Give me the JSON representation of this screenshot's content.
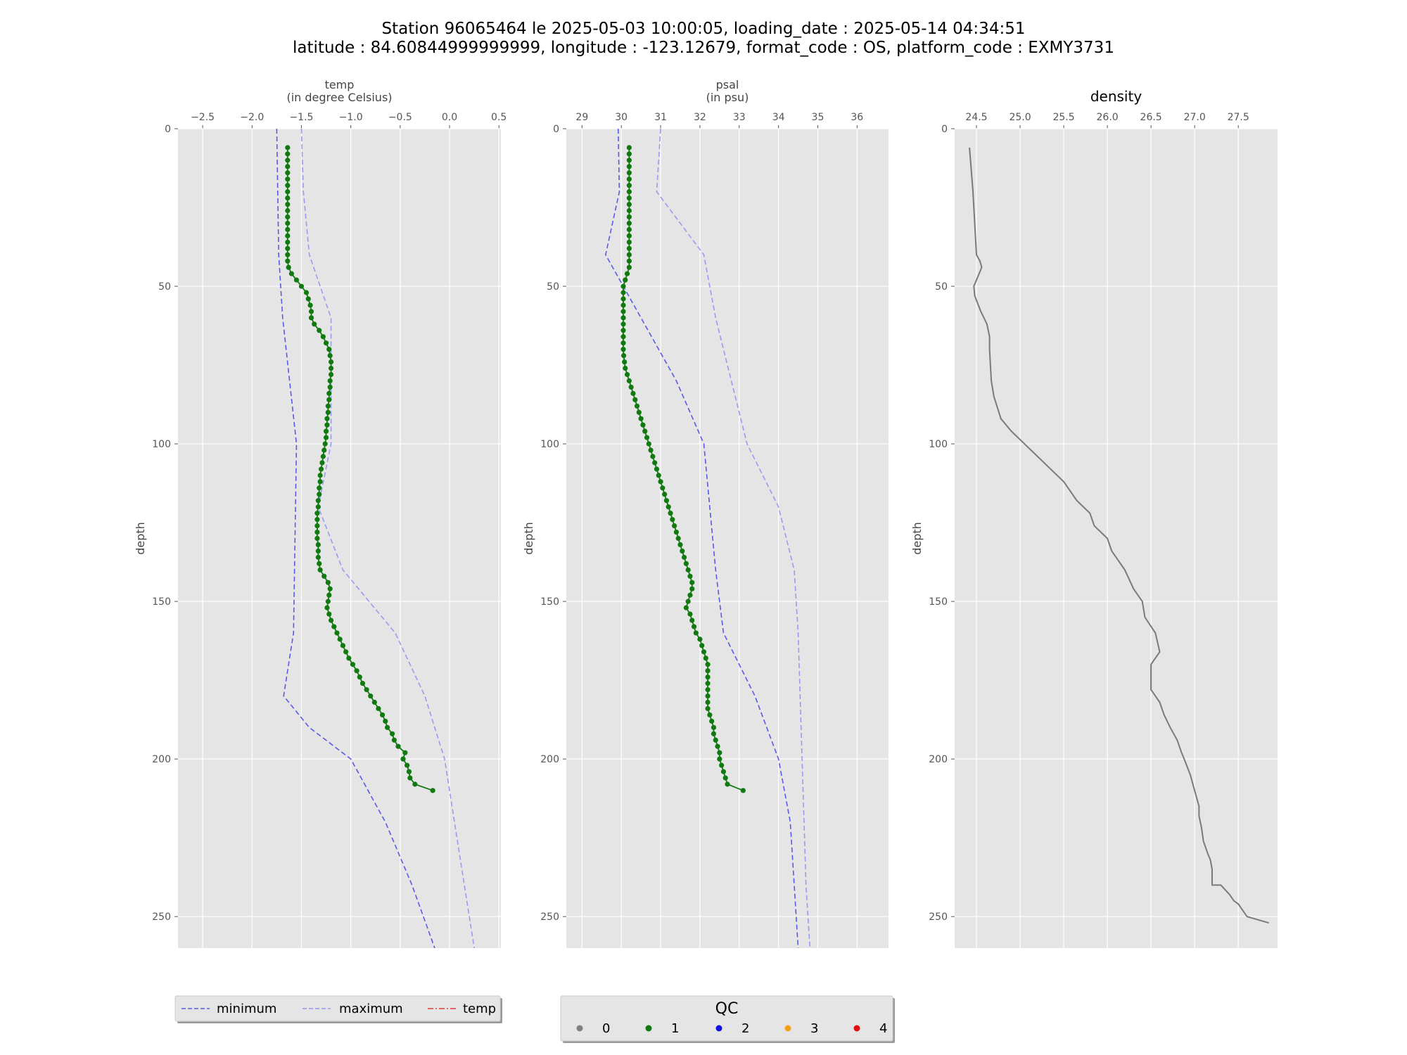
{
  "title": {
    "line1": "Station 96065464 le 2025-05-03 10:00:05, loading_date : 2025-05-14 04:34:51",
    "line2": "latitude : 84.60844999999999, longitude : -123.12679, format_code : OS, platform_code : EXMY3731"
  },
  "colors": {
    "panel_bg": "#e5e5e5",
    "grid": "#ffffff",
    "minimum": "#5a5ae6",
    "maximum": "#9a9aef",
    "qc1": "#107a10",
    "density": "#7a7a7a",
    "temp_legend": "#e23a3a"
  },
  "chart_data": [
    {
      "type": "line",
      "name": "temp",
      "title_line1": "temp",
      "title_line2": "(in degree Celsius)",
      "ylabel": "depth",
      "xlim": [
        -2.75,
        0.52
      ],
      "ylim": [
        260,
        0
      ],
      "xticks": [
        -2.5,
        -2.0,
        -1.5,
        -1.0,
        -0.5,
        0.0,
        0.5
      ],
      "xtick_labels": [
        "−2.5",
        "−2.0",
        "−1.5",
        "−1.0",
        "−0.5",
        "0.0",
        "0.5"
      ],
      "yticks": [
        0,
        50,
        100,
        150,
        200,
        250
      ],
      "ytick_labels": [
        "0",
        "50",
        "100",
        "150",
        "200",
        "250"
      ],
      "minimum": {
        "x": [
          -1.75,
          -1.74,
          -1.73,
          -1.69,
          -1.62,
          -1.55,
          -1.58,
          -1.68,
          -1.42,
          -1.0,
          -0.65,
          -0.38,
          -0.15
        ],
        "y": [
          0,
          20,
          40,
          60,
          80,
          100,
          160,
          180,
          190,
          200,
          220,
          240,
          260
        ]
      },
      "maximum": {
        "x": [
          -1.5,
          -1.48,
          -1.42,
          -1.2,
          -1.2,
          -1.2,
          -1.33,
          -1.08,
          -0.55,
          -0.25,
          -0.05,
          0.05,
          0.25
        ],
        "y": [
          0,
          20,
          40,
          60,
          80,
          100,
          120,
          140,
          160,
          180,
          200,
          220,
          260
        ]
      },
      "profile": {
        "qc": 1,
        "x": [
          -1.64,
          -1.64,
          -1.64,
          -1.64,
          -1.64,
          -1.64,
          -1.64,
          -1.64,
          -1.64,
          -1.64,
          -1.64,
          -1.64,
          -1.64,
          -1.64,
          -1.64,
          -1.64,
          -1.64,
          -1.64,
          -1.64,
          -1.63,
          -1.6,
          -1.55,
          -1.5,
          -1.45,
          -1.43,
          -1.41,
          -1.4,
          -1.4,
          -1.37,
          -1.32,
          -1.28,
          -1.25,
          -1.22,
          -1.21,
          -1.2,
          -1.2,
          -1.2,
          -1.21,
          -1.21,
          -1.22,
          -1.22,
          -1.23,
          -1.23,
          -1.24,
          -1.24,
          -1.25,
          -1.25,
          -1.26,
          -1.27,
          -1.28,
          -1.29,
          -1.3,
          -1.31,
          -1.31,
          -1.32,
          -1.32,
          -1.33,
          -1.33,
          -1.34,
          -1.34,
          -1.34,
          -1.34,
          -1.34,
          -1.33,
          -1.33,
          -1.33,
          -1.32,
          -1.31,
          -1.27,
          -1.23,
          -1.21,
          -1.22,
          -1.23,
          -1.24,
          -1.22,
          -1.2,
          -1.17,
          -1.14,
          -1.11,
          -1.08,
          -1.05,
          -1.02,
          -0.98,
          -0.94,
          -0.91,
          -0.88,
          -0.84,
          -0.8,
          -0.76,
          -0.72,
          -0.68,
          -0.65,
          -0.63,
          -0.58,
          -0.56,
          -0.52,
          -0.45,
          -0.47,
          -0.43,
          -0.41,
          -0.4,
          -0.35,
          -0.17
        ],
        "y": [
          6,
          8,
          10,
          12,
          14,
          16,
          18,
          20,
          22,
          24,
          26,
          28,
          30,
          32,
          34,
          36,
          38,
          40,
          42,
          44,
          46,
          48,
          50,
          52,
          54,
          56,
          58,
          60,
          62,
          64,
          66,
          68,
          70,
          72,
          74,
          76,
          78,
          80,
          82,
          84,
          86,
          88,
          90,
          92,
          94,
          96,
          98,
          100,
          102,
          104,
          106,
          108,
          110,
          112,
          114,
          116,
          118,
          120,
          122,
          124,
          126,
          128,
          130,
          132,
          134,
          136,
          138,
          140,
          142,
          144,
          146,
          148,
          150,
          152,
          154,
          156,
          158,
          160,
          162,
          164,
          166,
          168,
          170,
          172,
          174,
          176,
          178,
          180,
          182,
          184,
          186,
          188,
          190,
          192,
          194,
          196,
          198,
          200,
          202,
          204,
          206,
          208,
          210
        ]
      }
    },
    {
      "type": "line",
      "name": "psal",
      "title_line1": "psal",
      "title_line2": "(in psu)",
      "ylabel": "depth",
      "xlim": [
        28.6,
        36.8
      ],
      "ylim": [
        260,
        0
      ],
      "xticks": [
        29,
        30,
        31,
        32,
        33,
        34,
        35,
        36
      ],
      "xtick_labels": [
        "29",
        "30",
        "31",
        "32",
        "33",
        "34",
        "35",
        "36"
      ],
      "yticks": [
        0,
        50,
        100,
        150,
        200,
        250
      ],
      "ytick_labels": [
        "0",
        "50",
        "100",
        "150",
        "200",
        "250"
      ],
      "minimum": {
        "x": [
          29.92,
          29.95,
          29.6,
          30.05,
          31.4,
          32.1,
          32.4,
          32.6,
          33.4,
          34.0,
          34.3,
          34.5
        ],
        "y": [
          0,
          20,
          40,
          50,
          80,
          100,
          140,
          160,
          180,
          200,
          220,
          260
        ]
      },
      "maximum": {
        "x": [
          31.0,
          30.9,
          32.1,
          32.4,
          32.8,
          33.2,
          34.0,
          34.4,
          34.5,
          34.6,
          34.7,
          34.8
        ],
        "y": [
          0,
          20,
          40,
          60,
          80,
          100,
          120,
          140,
          160,
          200,
          240,
          260
        ]
      },
      "profile": {
        "qc": 1,
        "x": [
          30.2,
          30.2,
          30.2,
          30.2,
          30.2,
          30.2,
          30.2,
          30.2,
          30.2,
          30.2,
          30.2,
          30.2,
          30.2,
          30.2,
          30.2,
          30.2,
          30.2,
          30.2,
          30.2,
          30.2,
          30.15,
          30.1,
          30.05,
          30.05,
          30.05,
          30.05,
          30.05,
          30.05,
          30.05,
          30.05,
          30.05,
          30.05,
          30.05,
          30.06,
          30.08,
          30.1,
          30.15,
          30.2,
          30.25,
          30.3,
          30.35,
          30.4,
          30.45,
          30.5,
          30.55,
          30.6,
          30.65,
          30.7,
          30.75,
          30.8,
          30.85,
          30.9,
          30.95,
          31.0,
          31.05,
          31.1,
          31.15,
          31.2,
          31.25,
          31.3,
          31.35,
          31.4,
          31.45,
          31.5,
          31.55,
          31.6,
          31.65,
          31.7,
          31.75,
          31.8,
          31.8,
          31.75,
          31.7,
          31.65,
          31.75,
          31.8,
          31.85,
          31.9,
          32.0,
          32.05,
          32.1,
          32.15,
          32.2,
          32.2,
          32.2,
          32.2,
          32.2,
          32.2,
          32.2,
          32.2,
          32.25,
          32.3,
          32.35,
          32.35,
          32.4,
          32.45,
          32.5,
          32.5,
          32.55,
          32.6,
          32.65,
          32.7,
          33.1
        ],
        "y": [
          6,
          8,
          10,
          12,
          14,
          16,
          18,
          20,
          22,
          24,
          26,
          28,
          30,
          32,
          34,
          36,
          38,
          40,
          42,
          44,
          46,
          48,
          50,
          52,
          54,
          56,
          58,
          60,
          62,
          64,
          66,
          68,
          70,
          72,
          74,
          76,
          78,
          80,
          82,
          84,
          86,
          88,
          90,
          92,
          94,
          96,
          98,
          100,
          102,
          104,
          106,
          108,
          110,
          112,
          114,
          116,
          118,
          120,
          122,
          124,
          126,
          128,
          130,
          132,
          134,
          136,
          138,
          140,
          142,
          144,
          146,
          148,
          150,
          152,
          154,
          156,
          158,
          160,
          162,
          164,
          166,
          168,
          170,
          172,
          174,
          176,
          178,
          180,
          182,
          184,
          186,
          188,
          190,
          192,
          194,
          196,
          198,
          200,
          202,
          204,
          206,
          208,
          210
        ]
      }
    },
    {
      "type": "line",
      "name": "density",
      "title_line1": "density",
      "ylabel": "depth",
      "xlim": [
        24.25,
        27.95
      ],
      "ylim": [
        260,
        0
      ],
      "xticks": [
        24.5,
        25.0,
        25.5,
        26.0,
        26.5,
        27.0,
        27.5
      ],
      "xtick_labels": [
        "24.5",
        "25.0",
        "25.5",
        "26.0",
        "26.5",
        "27.0",
        "27.5"
      ],
      "yticks": [
        0,
        50,
        100,
        150,
        200,
        250
      ],
      "ytick_labels": [
        "0",
        "50",
        "100",
        "150",
        "200",
        "250"
      ],
      "line": {
        "x": [
          24.42,
          24.46,
          24.5,
          24.54,
          24.56,
          24.5,
          24.47,
          24.48,
          24.55,
          24.62,
          24.65,
          24.65,
          24.66,
          24.67,
          24.7,
          24.78,
          24.9,
          25.05,
          25.2,
          25.35,
          25.5,
          25.55,
          25.65,
          25.8,
          25.85,
          26.0,
          26.05,
          26.2,
          26.3,
          26.4,
          26.43,
          26.55,
          26.6,
          26.5,
          26.5,
          26.6,
          26.65,
          26.72,
          26.8,
          26.85,
          26.88,
          26.95,
          27.0,
          27.05,
          27.05,
          27.08,
          27.1,
          27.15,
          27.18,
          27.2,
          27.2,
          27.3,
          27.4,
          27.45,
          27.5,
          27.55,
          27.6,
          27.85
        ],
        "y": [
          6,
          20,
          40,
          42,
          44,
          48,
          50,
          53,
          58,
          62,
          66,
          70,
          75,
          80,
          85,
          92,
          96,
          100,
          104,
          108,
          112,
          114,
          118,
          122,
          126,
          130,
          134,
          140,
          146,
          150,
          155,
          160,
          166,
          170,
          178,
          182,
          186,
          190,
          194,
          198,
          200,
          205,
          210,
          215,
          218,
          222,
          226,
          230,
          232,
          235,
          240,
          240,
          243,
          245,
          246,
          248,
          250,
          252
        ]
      }
    }
  ],
  "legend_left": {
    "items": [
      {
        "label": "minimum"
      },
      {
        "label": "maximum"
      },
      {
        "label": "temp"
      }
    ]
  },
  "legend_qc": {
    "title": "QC",
    "items": [
      {
        "label": "0",
        "color": "#808080"
      },
      {
        "label": "1",
        "color": "#107a10"
      },
      {
        "label": "2",
        "color": "#1010e0"
      },
      {
        "label": "3",
        "color": "#f4a11a"
      },
      {
        "label": "4",
        "color": "#e01010"
      }
    ]
  }
}
